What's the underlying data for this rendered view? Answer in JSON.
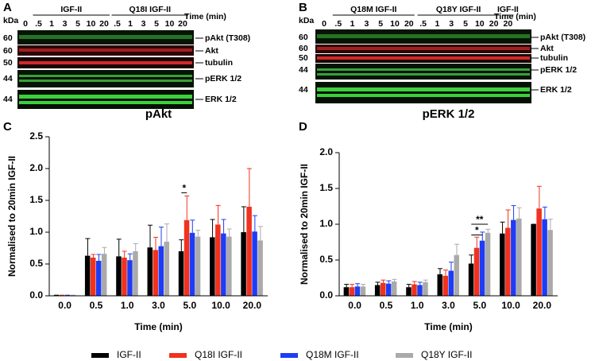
{
  "blots": [
    {
      "panel": "A",
      "kda": "kDa",
      "mw": [
        "60",
        "60",
        "50",
        "44",
        "44"
      ],
      "groups": [
        "IGF-II",
        "Q18I IGF-II"
      ],
      "time_label": "Time (min)",
      "lanes": [
        "0",
        ".5",
        "1",
        "3",
        "5",
        "10",
        "20",
        ".5",
        "1",
        "3",
        "5",
        "10",
        "20"
      ],
      "bands": [
        "pAkt (T308)",
        "Akt",
        "tubulin",
        "pERK 1/2",
        "ERK 1/2"
      ]
    },
    {
      "panel": "B",
      "kda": "kDa",
      "mw": [
        "60",
        "60",
        "50",
        "44",
        "44"
      ],
      "groups": [
        "Q18M IGF-II",
        "Q18Y IGF-II",
        "IGF-II"
      ],
      "time_label": "Time (min)",
      "lanes": [
        "0",
        ".5",
        "1",
        "3",
        "5",
        "10",
        "20",
        ".5",
        "1",
        "3",
        "5",
        "10",
        "20",
        "20"
      ],
      "bands": [
        "pAkt (T308)",
        "Akt",
        "tubulin",
        "pERK 1/2",
        "ERK 1/2"
      ]
    }
  ],
  "chart_data": [
    {
      "type": "bar",
      "panel": "C",
      "title": "pAkt",
      "x_label": "Time (min)",
      "y_label": "Normalised to 20min IGF-II",
      "categories": [
        "0.0",
        "0.5",
        "1.0",
        "3.0",
        "5.0",
        "10.0",
        "20.0"
      ],
      "ylim": [
        0,
        2.5
      ],
      "yticks": [
        {
          "value": 0,
          "label": "0.0"
        },
        0.5,
        {
          "value": 1,
          "label": "1.0"
        },
        1.5,
        {
          "value": 2,
          "label": "2.0"
        },
        2.5
      ],
      "annotations": [
        "*"
      ],
      "series": [
        {
          "name": "IGF-II",
          "color": "#000000",
          "values": [
            0.01,
            0.63,
            0.62,
            0.76,
            0.7,
            0.92,
            1.0
          ],
          "errors": [
            0,
            0.27,
            0.27,
            0.35,
            0.18,
            0.28,
            0.4
          ]
        },
        {
          "name": "Q18I IGF-II",
          "color": "#f0321e",
          "values": [
            0.01,
            0.6,
            0.6,
            0.72,
            1.19,
            1.12,
            1.4
          ],
          "errors": [
            0,
            0.05,
            0.1,
            0.2,
            0.38,
            0.3,
            0.6
          ]
        },
        {
          "name": "Q18M IGF-II",
          "color": "#1e3cf5",
          "values": [
            0.01,
            0.55,
            0.56,
            0.78,
            0.99,
            0.98,
            1.01
          ],
          "errors": [
            0,
            0.1,
            0.1,
            0.3,
            0.2,
            0.22,
            0.25
          ]
        },
        {
          "name": "Q18Y IGF-II",
          "color": "#aaaaaa",
          "values": [
            0.01,
            0.66,
            0.7,
            0.85,
            0.93,
            0.93,
            0.87
          ],
          "errors": [
            0,
            0.1,
            0.12,
            0.28,
            0.1,
            0.12,
            0.22
          ]
        }
      ]
    },
    {
      "type": "bar",
      "panel": "D",
      "title": "pERK 1/2",
      "x_label": "Time (min)",
      "y_label": "Normalised to 20min IGF-II",
      "categories": [
        "0.0",
        "0.5",
        "1.0",
        "3.0",
        "5.0",
        "10.0",
        "20.0"
      ],
      "ylim": [
        0,
        2
      ],
      "yticks": [
        {
          "value": 0,
          "label": "0.0"
        },
        0.5,
        {
          "value": 1,
          "label": "1.0"
        },
        1.5,
        {
          "value": 2,
          "label": "2.0"
        }
      ],
      "annotations": [
        "**",
        "*"
      ],
      "series": [
        {
          "color": "#000000",
          "values": [
            0.12,
            0.15,
            0.12,
            0.3,
            0.45,
            0.87,
            1.0
          ],
          "errors": [
            0.04,
            0.04,
            0.04,
            0.08,
            0.12,
            0.16,
            0.0
          ]
        },
        {
          "color": "#f0321e",
          "values": [
            0.12,
            0.18,
            0.16,
            0.28,
            0.67,
            0.95,
            1.22
          ],
          "errors": [
            0.04,
            0.04,
            0.04,
            0.08,
            0.15,
            0.25,
            0.31
          ]
        },
        {
          "color": "#1e3cf5",
          "values": [
            0.13,
            0.17,
            0.15,
            0.35,
            0.77,
            1.06,
            1.07
          ],
          "errors": [
            0.04,
            0.04,
            0.04,
            0.12,
            0.12,
            0.2,
            0.17
          ]
        },
        {
          "color": "#aaaaaa",
          "values": [
            0.13,
            0.2,
            0.19,
            0.57,
            0.88,
            1.08,
            0.92
          ],
          "errors": [
            0.03,
            0.03,
            0.03,
            0.15,
            0.05,
            0.15,
            0.15
          ]
        }
      ]
    }
  ]
}
